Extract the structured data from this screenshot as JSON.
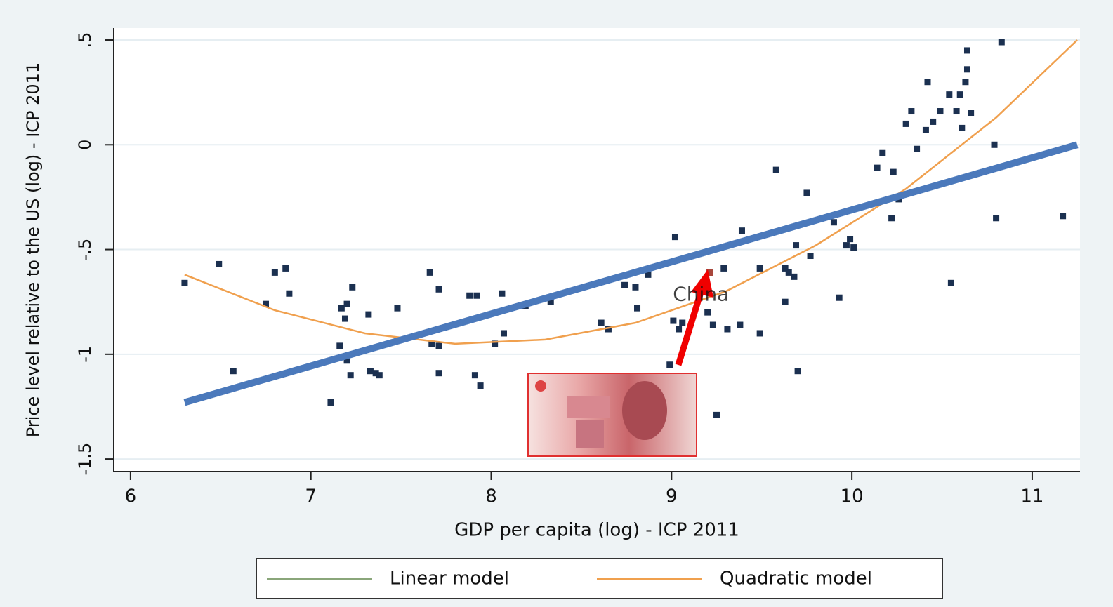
{
  "chart_data": {
    "type": "scatter",
    "xlabel": "GDP per capita (log) - ICP 2011",
    "ylabel": "Price level relative to the US (log) - ICP 2011",
    "xlim": [
      5.907,
      11.265
    ],
    "ylim": [
      -1.56,
      0.557
    ],
    "xticks": [
      6,
      7,
      8,
      9,
      10,
      11
    ],
    "yticks": [
      {
        "value": 0.5,
        "label": ".5"
      },
      0,
      {
        "value": -0.5,
        "label": "-.5"
      },
      -1,
      -1.5
    ],
    "grid": true,
    "series": [
      {
        "type": "scatter",
        "color": "#1b3050",
        "x": [
          6.3,
          6.49,
          6.57,
          6.75,
          6.8,
          6.86,
          6.88,
          7.11,
          7.16,
          7.17,
          7.19,
          7.2,
          7.23,
          7.2,
          7.22,
          7.32,
          7.33,
          7.36,
          7.38,
          7.48,
          7.66,
          7.67,
          7.71,
          7.71,
          7.71,
          7.88,
          7.92,
          7.91,
          7.94,
          8.02,
          8.06,
          8.07,
          8.19,
          8.33,
          8.61,
          8.65,
          8.74,
          8.8,
          8.81,
          8.87,
          8.99,
          9.02,
          9.01,
          9.04,
          9.06,
          9.2,
          9.23,
          9.25,
          9.29,
          9.31,
          9.38,
          9.39,
          9.49,
          9.49,
          9.58,
          9.63,
          9.63,
          9.65,
          9.69,
          9.68,
          9.7,
          9.75,
          9.77,
          9.9,
          9.93,
          9.97,
          9.99,
          10.01,
          10.14,
          10.17,
          10.22,
          10.23,
          10.26,
          10.3,
          10.33,
          10.36,
          10.42,
          10.41,
          10.45,
          10.49,
          10.54,
          10.55,
          10.58,
          10.6,
          10.61,
          10.63,
          10.64,
          10.64,
          10.66,
          10.79,
          10.8,
          10.83,
          11.17
        ],
        "values": [
          -0.66,
          -0.57,
          -1.08,
          -0.76,
          -0.61,
          -0.59,
          -0.71,
          -1.23,
          -0.96,
          -0.78,
          -0.83,
          -0.76,
          -0.68,
          -1.03,
          -1.1,
          -0.81,
          -1.08,
          -1.09,
          -1.1,
          -0.78,
          -0.61,
          -0.95,
          -0.69,
          -0.96,
          -1.09,
          -0.72,
          -0.72,
          -1.1,
          -1.15,
          -0.95,
          -0.71,
          -0.9,
          -0.77,
          -0.75,
          -0.85,
          -0.88,
          -0.67,
          -0.68,
          -0.78,
          -0.62,
          -1.05,
          -0.44,
          -0.84,
          -0.88,
          -0.85,
          -0.8,
          -0.86,
          -1.29,
          -0.59,
          -0.88,
          -0.86,
          -0.41,
          -0.9,
          -0.59,
          -0.12,
          -0.75,
          -0.59,
          -0.61,
          -0.48,
          -0.63,
          -1.08,
          -0.23,
          -0.53,
          -0.37,
          -0.73,
          -0.48,
          -0.45,
          -0.49,
          -0.11,
          -0.04,
          -0.35,
          -0.13,
          -0.26,
          0.1,
          0.16,
          -0.02,
          0.3,
          0.07,
          0.11,
          0.16,
          0.24,
          -0.66,
          0.16,
          0.24,
          0.08,
          0.3,
          0.36,
          0.45,
          0.15,
          0.0,
          -0.35,
          0.49,
          -0.34
        ]
      },
      {
        "type": "line",
        "name": "Quadratic model",
        "color": "#f0a04e",
        "x": [
          6.3,
          6.8,
          7.3,
          7.8,
          8.3,
          8.8,
          9.3,
          9.8,
          10.3,
          10.8,
          11.25
        ],
        "values": [
          -0.62,
          -0.79,
          -0.9,
          -0.95,
          -0.93,
          -0.85,
          -0.7,
          -0.48,
          -0.21,
          0.13,
          0.5
        ]
      },
      {
        "type": "line",
        "name": "Linear model",
        "color": "#4b79bb",
        "legend_color": "#8aa67a",
        "x": [
          6.3,
          11.25
        ],
        "values": [
          -1.23,
          0.0
        ]
      }
    ],
    "annotations": [
      {
        "text": "China",
        "x": 9.21,
        "y": -0.61,
        "color": "#a8473c"
      }
    ]
  }
}
